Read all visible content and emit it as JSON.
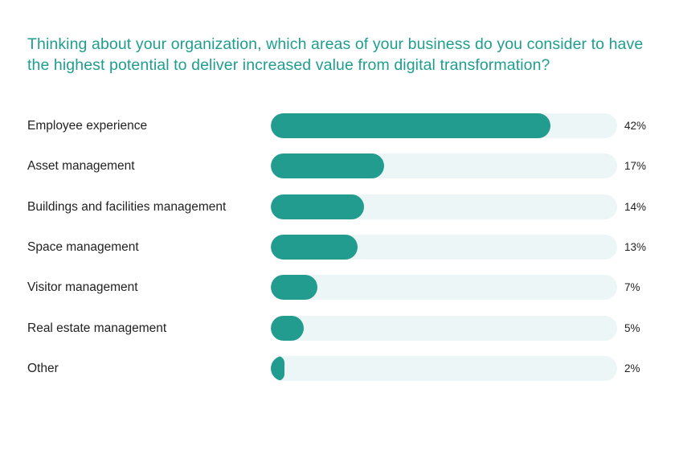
{
  "chart_data": {
    "type": "bar",
    "orientation": "horizontal",
    "title": "Thinking about your organization, which areas of your business do you consider to have the highest potential to deliver increased value from digital transformation?",
    "categories": [
      "Employee experience",
      "Asset management",
      "Buildings and facilities management",
      "Space management",
      "Visitor management",
      "Real estate management",
      "Other"
    ],
    "values": [
      42,
      17,
      14,
      13,
      7,
      5,
      2
    ],
    "value_labels": [
      "42%",
      "17%",
      "14%",
      "13%",
      "7%",
      "5%",
      "2%"
    ],
    "unit": "%",
    "xlim": [
      0,
      52
    ],
    "grid": false,
    "colors": {
      "title": "#1f9e8f",
      "bar": "#229c8f",
      "track": "#ecf6f6",
      "text": "#222222"
    }
  }
}
